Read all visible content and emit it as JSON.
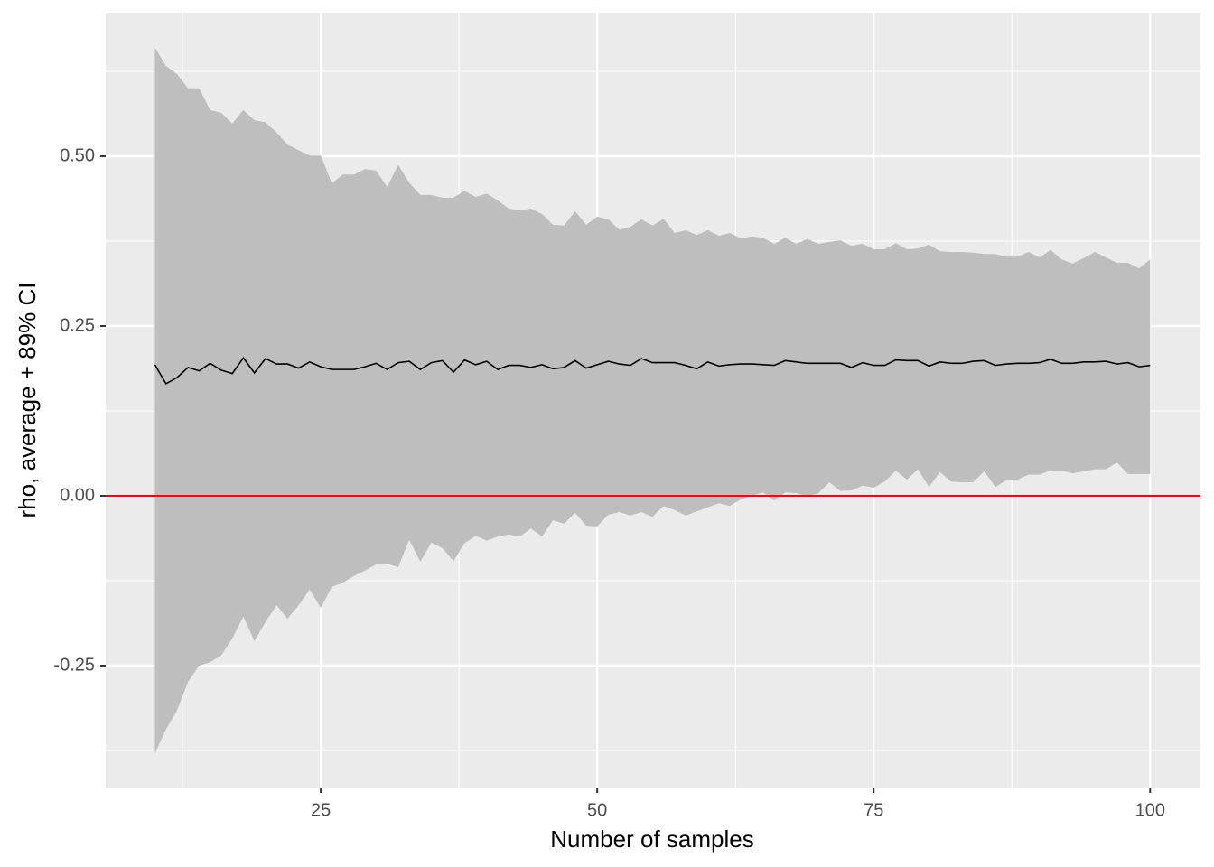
{
  "chart_data": {
    "type": "ribbon-line",
    "x_label": "Number of samples",
    "y_label": "rho, average + 89% CI",
    "xlim": [
      5.55,
      104.55
    ],
    "ylim": [
      -0.4295,
      0.7114
    ],
    "xticks": [
      25,
      50,
      75,
      100
    ],
    "xminor": [
      12.5,
      37.5,
      62.5,
      87.5
    ],
    "yticks": [
      {
        "value": -0.25,
        "label": "-0.25"
      },
      {
        "value": 0,
        "label": "0.00"
      },
      0.25,
      {
        "value": 0.5,
        "label": "0.50"
      }
    ],
    "yminor": [
      -0.375,
      -0.125,
      0.125,
      0.375,
      0.625
    ],
    "grid": true,
    "x": [
      10,
      11,
      12,
      13,
      14,
      15,
      16,
      17,
      18,
      19,
      20,
      21,
      22,
      23,
      24,
      25,
      26,
      27,
      28,
      29,
      30,
      31,
      32,
      33,
      34,
      35,
      36,
      37,
      38,
      39,
      40,
      41,
      42,
      43,
      44,
      45,
      46,
      47,
      48,
      49,
      50,
      51,
      52,
      53,
      54,
      55,
      56,
      57,
      58,
      59,
      60,
      61,
      62,
      63,
      64,
      65,
      66,
      67,
      68,
      69,
      70,
      71,
      72,
      73,
      74,
      75,
      76,
      77,
      78,
      79,
      80,
      81,
      82,
      83,
      84,
      85,
      86,
      87,
      88,
      89,
      90,
      91,
      92,
      93,
      94,
      95,
      96,
      97,
      98,
      99,
      100
    ],
    "ribbon": {
      "color": "#bebebe",
      "upper": [
        0.66,
        0.633,
        0.621,
        0.6,
        0.6,
        0.568,
        0.564,
        0.548,
        0.568,
        0.553,
        0.55,
        0.535,
        0.517,
        0.509,
        0.501,
        0.501,
        0.46,
        0.473,
        0.473,
        0.481,
        0.479,
        0.455,
        0.487,
        0.461,
        0.443,
        0.443,
        0.439,
        0.439,
        0.449,
        0.44,
        0.445,
        0.435,
        0.423,
        0.42,
        0.423,
        0.415,
        0.399,
        0.398,
        0.419,
        0.399,
        0.411,
        0.407,
        0.392,
        0.396,
        0.407,
        0.398,
        0.408,
        0.387,
        0.391,
        0.384,
        0.391,
        0.383,
        0.387,
        0.379,
        0.382,
        0.38,
        0.371,
        0.38,
        0.371,
        0.378,
        0.371,
        0.374,
        0.376,
        0.368,
        0.371,
        0.363,
        0.363,
        0.372,
        0.363,
        0.364,
        0.37,
        0.36,
        0.359,
        0.359,
        0.358,
        0.356,
        0.356,
        0.352,
        0.352,
        0.359,
        0.351,
        0.362,
        0.348,
        0.342,
        0.35,
        0.359,
        0.351,
        0.343,
        0.343,
        0.335,
        0.348
      ],
      "lower": [
        -0.379,
        -0.344,
        -0.316,
        -0.274,
        -0.25,
        -0.245,
        -0.235,
        -0.21,
        -0.178,
        -0.214,
        -0.186,
        -0.161,
        -0.181,
        -0.161,
        -0.138,
        -0.165,
        -0.134,
        -0.128,
        -0.118,
        -0.11,
        -0.101,
        -0.1,
        -0.105,
        -0.065,
        -0.097,
        -0.069,
        -0.077,
        -0.096,
        -0.07,
        -0.059,
        -0.066,
        -0.06,
        -0.057,
        -0.06,
        -0.048,
        -0.06,
        -0.036,
        -0.041,
        -0.025,
        -0.044,
        -0.045,
        -0.028,
        -0.024,
        -0.029,
        -0.024,
        -0.031,
        -0.015,
        -0.021,
        -0.029,
        -0.023,
        -0.017,
        -0.011,
        -0.015,
        -0.005,
        0,
        0.005,
        -0.007,
        0.005,
        0.004,
        -0.001,
        0.004,
        0.02,
        0.007,
        0.008,
        0.015,
        0.012,
        0.021,
        0.037,
        0.024,
        0.039,
        0.013,
        0.035,
        0.021,
        0.02,
        0.02,
        0.036,
        0.013,
        0.023,
        0.024,
        0.031,
        0.031,
        0.037,
        0.037,
        0.033,
        0.036,
        0.039,
        0.039,
        0.049,
        0.032,
        0.032,
        0.032
      ]
    },
    "line": {
      "color": "#000000",
      "values": [
        0.193,
        0.165,
        0.174,
        0.189,
        0.184,
        0.195,
        0.185,
        0.18,
        0.203,
        0.181,
        0.202,
        0.194,
        0.194,
        0.188,
        0.197,
        0.19,
        0.186,
        0.186,
        0.186,
        0.19,
        0.195,
        0.186,
        0.196,
        0.198,
        0.186,
        0.196,
        0.199,
        0.182,
        0.2,
        0.193,
        0.198,
        0.186,
        0.192,
        0.192,
        0.189,
        0.193,
        0.187,
        0.189,
        0.199,
        0.188,
        0.193,
        0.198,
        0.194,
        0.192,
        0.202,
        0.196,
        0.196,
        0.196,
        0.192,
        0.187,
        0.197,
        0.191,
        0.193,
        0.194,
        0.194,
        0.193,
        0.192,
        0.199,
        0.197,
        0.195,
        0.195,
        0.195,
        0.195,
        0.189,
        0.196,
        0.192,
        0.192,
        0.2,
        0.199,
        0.199,
        0.191,
        0.197,
        0.195,
        0.195,
        0.198,
        0.199,
        0.192,
        0.194,
        0.195,
        0.195,
        0.196,
        0.201,
        0.195,
        0.195,
        0.197,
        0.197,
        0.198,
        0.194,
        0.196,
        0.19,
        0.192
      ]
    },
    "hline": {
      "value": 0,
      "color": "#ff0000"
    }
  }
}
